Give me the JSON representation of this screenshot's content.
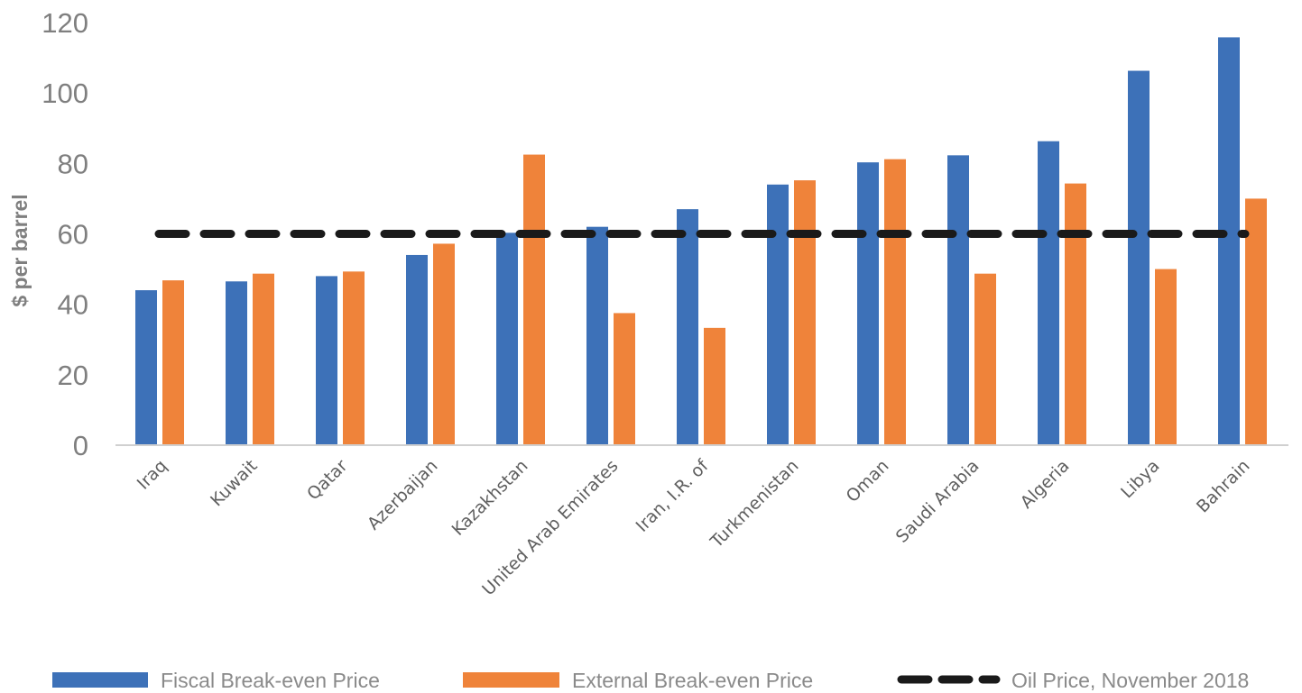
{
  "chart_data": {
    "type": "bar",
    "title": "",
    "xlabel": "",
    "ylabel": "$ per barrel",
    "ylim": [
      0,
      120
    ],
    "yticks": [
      0,
      20,
      40,
      60,
      80,
      100,
      120
    ],
    "grid": false,
    "legend_position": "bottom",
    "categories": [
      "Iraq",
      "Kuwait",
      "Qatar",
      "Azerbaijan",
      "Kazakhstan",
      "United Arab Emirates",
      "Iran, I.R. of",
      "Turkmenistan",
      "Oman",
      "Saudi Arabia",
      "Algeria",
      "Libya",
      "Bahrain"
    ],
    "series": [
      {
        "name": "Fiscal Break-even Price",
        "type": "bar",
        "color": "#3d71b8",
        "values": [
          44,
          46.5,
          48,
          54,
          60.3,
          62,
          67,
          74,
          80.3,
          82.3,
          86.3,
          106.3,
          115.8
        ]
      },
      {
        "name": "External Break-even Price",
        "type": "bar",
        "color": "#ef833a",
        "values": [
          46.8,
          48.7,
          49.3,
          57.2,
          82.5,
          37.5,
          33.3,
          75.2,
          81.2,
          48.7,
          74.3,
          50,
          70
        ]
      },
      {
        "name": "Oil Price, November 2018",
        "type": "line",
        "style": "dashed",
        "color": "#1a1a1a",
        "value": 60
      }
    ]
  }
}
